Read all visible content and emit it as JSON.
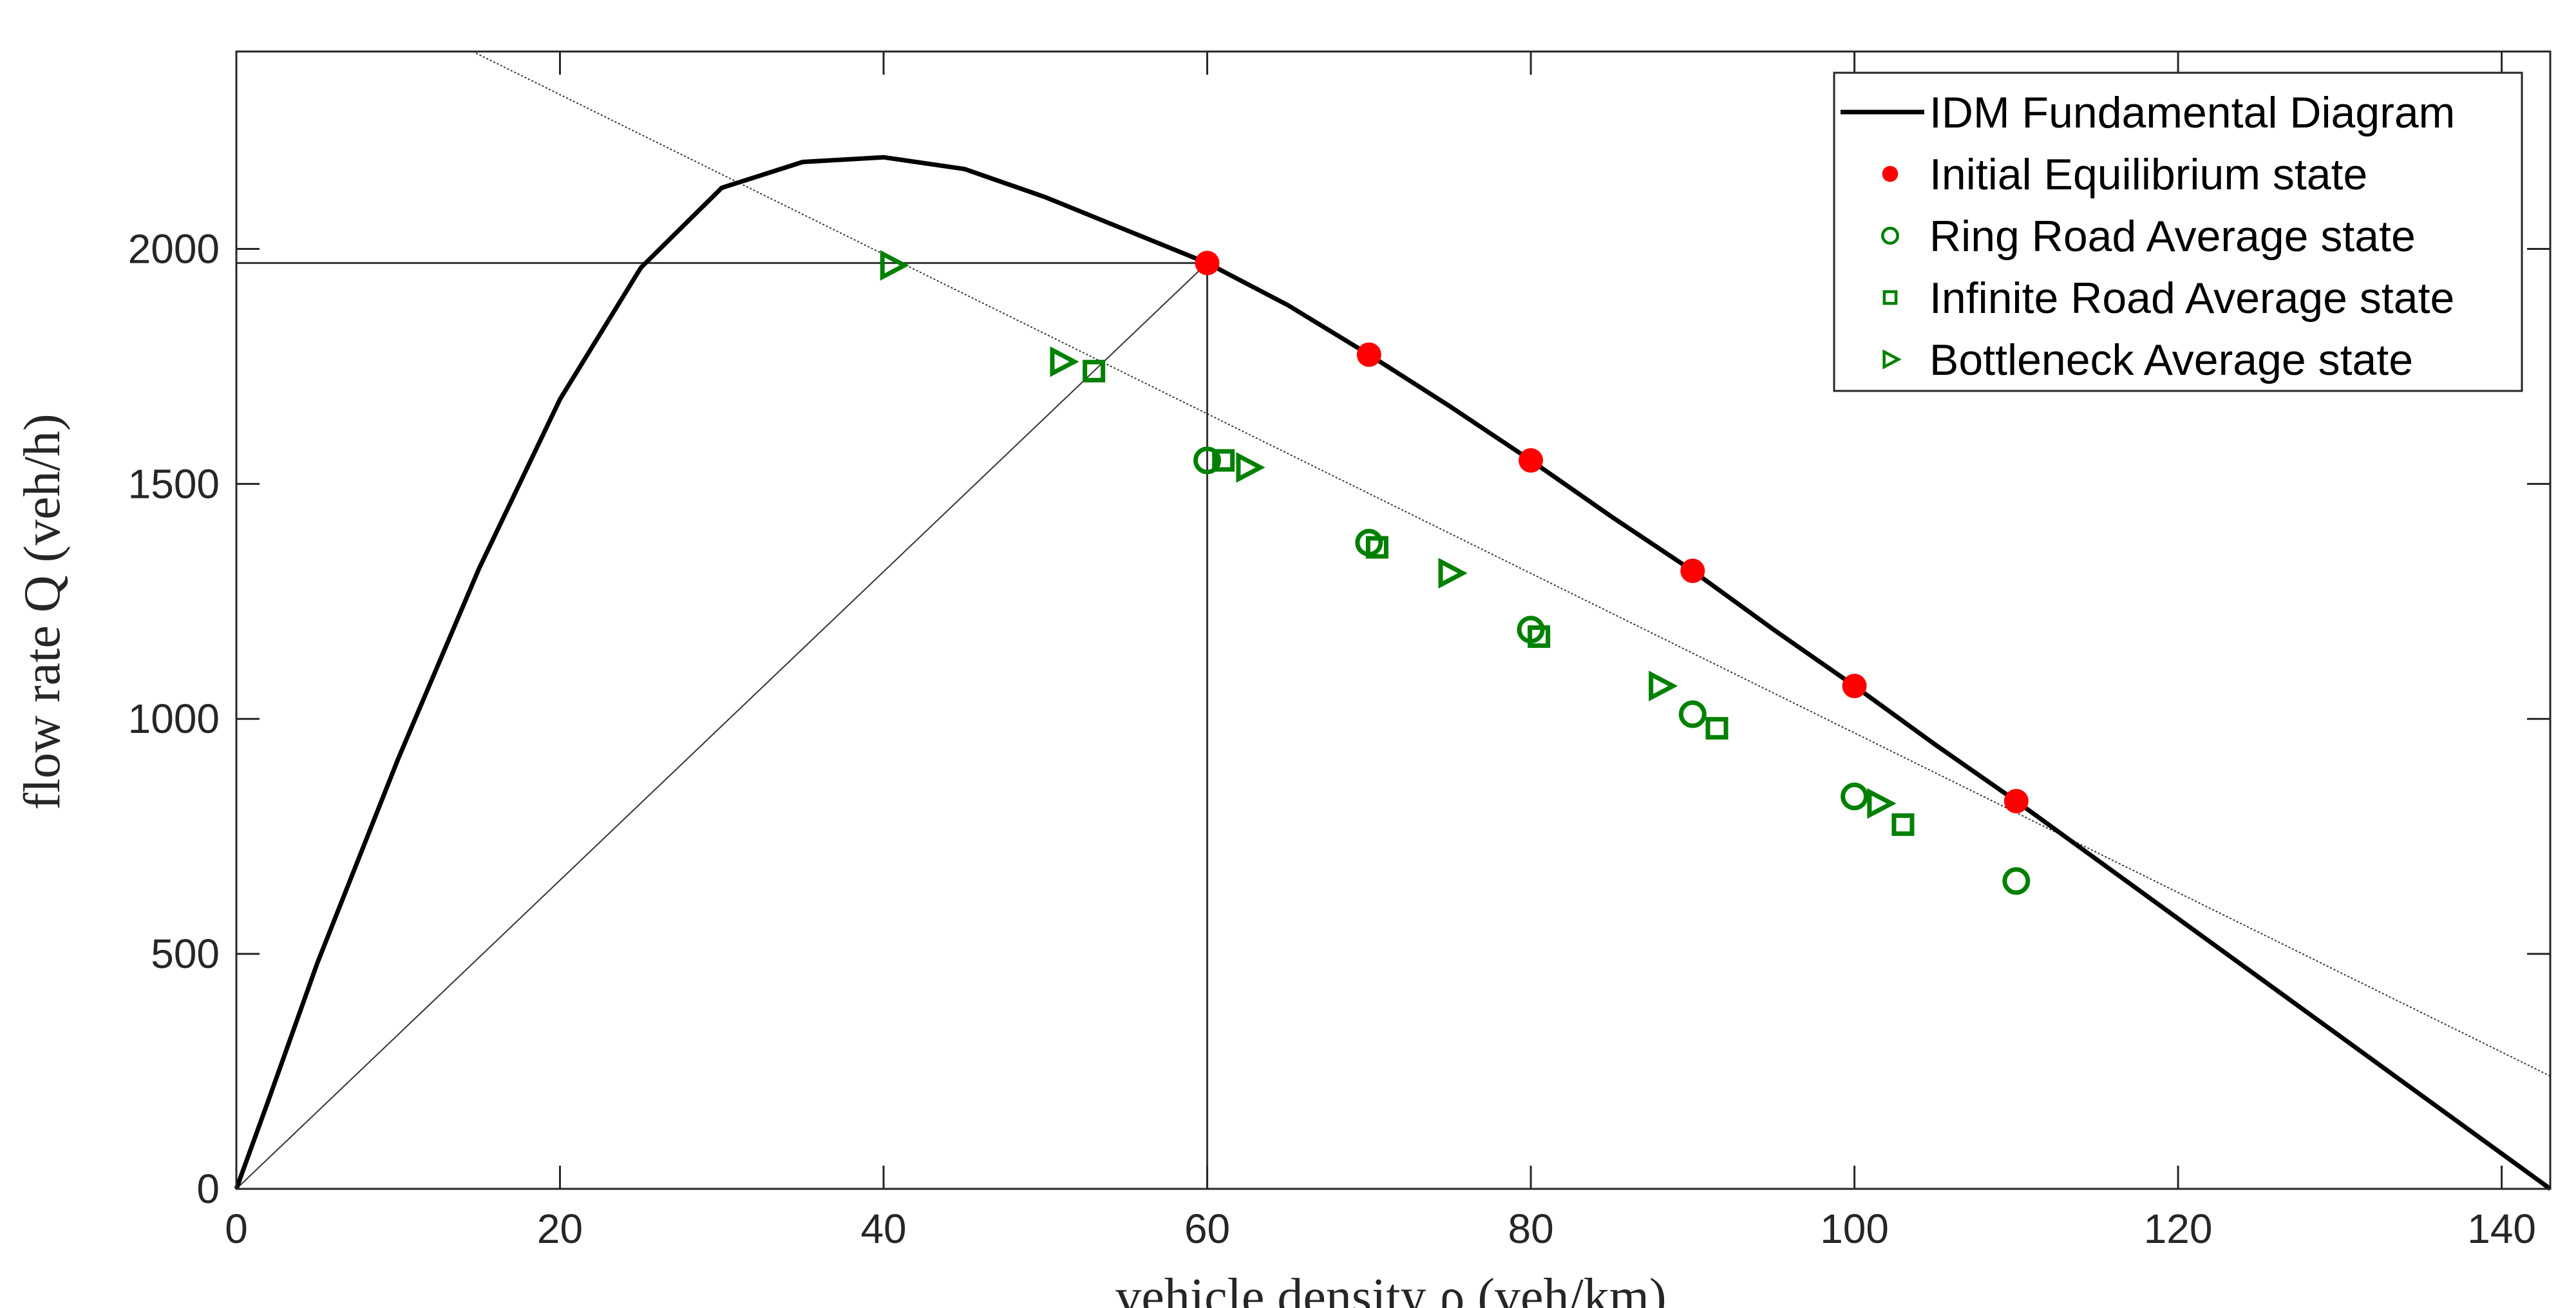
{
  "chart_data": {
    "type": "line",
    "title": "",
    "xlabel": "vehicle density ρ (veh/km)",
    "ylabel": "flow rate Q (veh/h)",
    "xlim": [
      0,
      143
    ],
    "ylim": [
      0,
      2420
    ],
    "xticks": [
      0,
      20,
      40,
      60,
      80,
      100,
      120,
      140
    ],
    "yticks": [
      0,
      500,
      1000,
      1500,
      2000
    ],
    "grid": false,
    "legend_position": "top-right",
    "colors": {
      "curve": "#000000",
      "equilibrium": "#ff0000",
      "average": "#008000",
      "guide": "#333333"
    },
    "series": [
      {
        "name": "IDM Fundamental Diagram",
        "kind": "line",
        "x": [
          0,
          2,
          5,
          10,
          15,
          20,
          25,
          30,
          35,
          40,
          45,
          50,
          55,
          60,
          65,
          70,
          75,
          80,
          85,
          90,
          95,
          100,
          105,
          110,
          115,
          120,
          125,
          130,
          135,
          140,
          143
        ],
        "y": [
          0,
          190,
          480,
          915,
          1320,
          1680,
          1960,
          2130,
          2185,
          2195,
          2170,
          2110,
          2040,
          1970,
          1880,
          1775,
          1665,
          1550,
          1430,
          1315,
          1190,
          1070,
          945,
          825,
          700,
          575,
          450,
          325,
          200,
          75,
          0
        ]
      },
      {
        "name": "Initial Equilibrium state",
        "kind": "scatter",
        "marker": "dot",
        "x": [
          60,
          70,
          80,
          90,
          100,
          110
        ],
        "y": [
          1970,
          1775,
          1550,
          1315,
          1070,
          825
        ]
      },
      {
        "name": "Ring Road Average state",
        "kind": "scatter",
        "marker": "circle",
        "x": [
          60,
          70,
          80,
          90,
          100,
          110
        ],
        "y": [
          1550,
          1375,
          1190,
          1010,
          835,
          655
        ]
      },
      {
        "name": "Infinite Road Average state",
        "kind": "scatter",
        "marker": "square",
        "x": [
          53,
          61,
          70.5,
          80.5,
          91.5,
          103
        ],
        "y": [
          1740,
          1550,
          1365,
          1175,
          980,
          775
        ]
      },
      {
        "name": "Bottleneck Average state",
        "kind": "scatter",
        "marker": "triangle-right",
        "x": [
          40.5,
          51,
          62.5,
          75,
          88,
          101.5
        ],
        "y": [
          1965,
          1760,
          1535,
          1310,
          1070,
          820
        ]
      }
    ],
    "guides": {
      "chord_line": {
        "x": [
          14.6,
          143
        ],
        "y": [
          2420,
          240
        ]
      },
      "ray_from_origin": {
        "x": [
          0,
          60
        ],
        "y": [
          0,
          1970
        ]
      },
      "vertical_at": 60,
      "horizontal_at": 1970
    }
  }
}
